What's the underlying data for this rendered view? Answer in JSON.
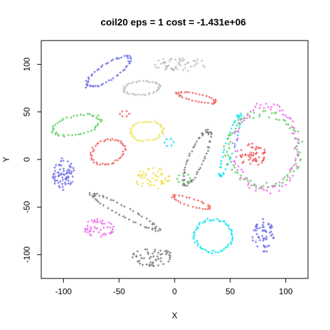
{
  "chart_data": {
    "type": "scatter",
    "title": "coil20 eps = 1 cost = -1.431e+06",
    "xlabel": "X",
    "ylabel": "Y",
    "xlim": [
      -120,
      120
    ],
    "ylim": [
      -125,
      125
    ],
    "xticks": [
      -100,
      -50,
      0,
      50,
      100
    ],
    "yticks": [
      -100,
      -50,
      0,
      50,
      100
    ],
    "grid": false,
    "legend": "none",
    "marker": "plus",
    "clusters": [
      {
        "color": "#6a6ae6",
        "shape": "ellipse",
        "cx": -60,
        "cy": 92,
        "rx": 24,
        "ry": 8,
        "angle": 38,
        "filled": false,
        "n": 55
      },
      {
        "color": "#bdbdbd",
        "shape": "ellipse",
        "cx": 5,
        "cy": 100,
        "rx": 25,
        "ry": 7,
        "angle": 0,
        "filled": true,
        "n": 55
      },
      {
        "color": "#bdbdbd",
        "shape": "ellipse",
        "cx": -30,
        "cy": 75,
        "rx": 16,
        "ry": 7,
        "angle": 5,
        "filled": false,
        "n": 45
      },
      {
        "color": "#ef5b5b",
        "shape": "ellipse",
        "cx": 20,
        "cy": 65,
        "rx": 18,
        "ry": 4,
        "angle": -15,
        "filled": false,
        "n": 35
      },
      {
        "color": "#ef5b5b",
        "shape": "ellipse",
        "cx": -45,
        "cy": 48,
        "rx": 4,
        "ry": 3,
        "angle": 0,
        "filled": false,
        "n": 6
      },
      {
        "color": "#55cc55",
        "shape": "ellipse",
        "cx": -88,
        "cy": 36,
        "rx": 22,
        "ry": 10,
        "angle": 15,
        "filled": false,
        "n": 45
      },
      {
        "color": "#f0e050",
        "shape": "ellipse",
        "cx": -25,
        "cy": 30,
        "rx": 15,
        "ry": 10,
        "angle": 10,
        "filled": false,
        "n": 40
      },
      {
        "color": "#ef5b5b",
        "shape": "ellipse",
        "cx": -60,
        "cy": 8,
        "rx": 16,
        "ry": 12,
        "angle": 30,
        "filled": false,
        "n": 45
      },
      {
        "color": "#6a6ae6",
        "shape": "ellipse",
        "cx": -100,
        "cy": -15,
        "rx": 10,
        "ry": 18,
        "angle": 0,
        "filled": true,
        "n": 70
      },
      {
        "color": "#777777",
        "shape": "ellipse",
        "cx": 20,
        "cy": 2,
        "rx": 30,
        "ry": 7,
        "angle": 70,
        "filled": false,
        "n": 60
      },
      {
        "color": "#00e5ee",
        "shape": "ellipse",
        "cx": 50,
        "cy": 15,
        "rx": 33,
        "ry": 4,
        "angle": 75,
        "filled": false,
        "n": 45
      },
      {
        "color": "#00e5ee",
        "shape": "ellipse",
        "cx": -5,
        "cy": 18,
        "rx": 4,
        "ry": 4,
        "angle": 0,
        "filled": false,
        "n": 6
      },
      {
        "color": "#f0e050",
        "shape": "ellipse",
        "cx": -20,
        "cy": -20,
        "rx": 16,
        "ry": 12,
        "angle": 0,
        "filled": true,
        "n": 55
      },
      {
        "color": "#55cc55",
        "shape": "ellipse",
        "cx": 8,
        "cy": -20,
        "rx": 6,
        "ry": 5,
        "angle": 0,
        "filled": false,
        "n": 8
      },
      {
        "color": "#ef5b5b",
        "shape": "ellipse",
        "cx": 70,
        "cy": 5,
        "rx": 13,
        "ry": 12,
        "angle": 0,
        "filled": true,
        "n": 55
      },
      {
        "color": "#55cc55",
        "shape": "ellipse",
        "cx": 80,
        "cy": 10,
        "rx": 33,
        "ry": 38,
        "angle": 0,
        "filled": false,
        "n": 90
      },
      {
        "color": "#ee66ee",
        "shape": "ellipse",
        "cx": 82,
        "cy": 12,
        "rx": 28,
        "ry": 45,
        "angle": 0,
        "filled": false,
        "n": 90
      },
      {
        "color": "#777777",
        "shape": "ellipse",
        "cx": -45,
        "cy": -55,
        "rx": 35,
        "ry": 5,
        "angle": -32,
        "filled": false,
        "n": 55
      },
      {
        "color": "#ef5b5b",
        "shape": "ellipse",
        "cx": 15,
        "cy": -45,
        "rx": 18,
        "ry": 4,
        "angle": -20,
        "filled": false,
        "n": 30
      },
      {
        "color": "#ee66ee",
        "shape": "ellipse",
        "cx": -68,
        "cy": -72,
        "rx": 14,
        "ry": 10,
        "angle": 0,
        "filled": true,
        "n": 50
      },
      {
        "color": "#00e5ee",
        "shape": "ellipse",
        "cx": 35,
        "cy": -80,
        "rx": 17,
        "ry": 17,
        "angle": 0,
        "filled": false,
        "n": 55
      },
      {
        "color": "#6a6ae6",
        "shape": "ellipse",
        "cx": 80,
        "cy": -80,
        "rx": 10,
        "ry": 18,
        "angle": 0,
        "filled": true,
        "n": 55
      },
      {
        "color": "#777777",
        "shape": "ellipse",
        "cx": -20,
        "cy": -102,
        "rx": 18,
        "ry": 10,
        "angle": 0,
        "filled": true,
        "n": 55
      }
    ]
  }
}
